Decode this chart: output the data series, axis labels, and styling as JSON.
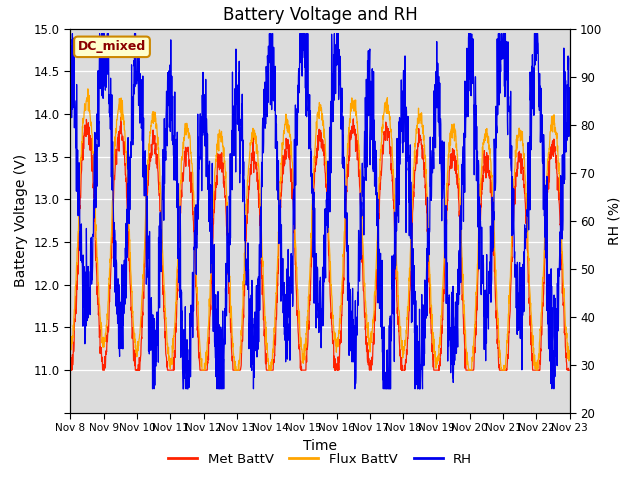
{
  "title": "Battery Voltage and RH",
  "xlabel": "Time",
  "ylabel_left": "Battery Voltage (V)",
  "ylabel_right": "RH (%)",
  "annotation_text": "DC_mixed",
  "annotation_color": "#8B0000",
  "annotation_bg": "#FFFFCC",
  "annotation_border": "#CC8800",
  "ylim_left": [
    10.5,
    15.0
  ],
  "ylim_right": [
    20,
    100
  ],
  "yticks_left": [
    10.5,
    11.0,
    11.5,
    12.0,
    12.5,
    13.0,
    13.5,
    14.0,
    14.5,
    15.0
  ],
  "yticks_right": [
    20,
    30,
    40,
    50,
    60,
    70,
    80,
    90,
    100
  ],
  "xtick_labels": [
    "Nov 8",
    "Nov 9",
    "Nov 10",
    "Nov 11",
    "Nov 12",
    "Nov 13",
    "Nov 14",
    "Nov 15",
    "Nov 16",
    "Nov 17",
    "Nov 18",
    "Nov 19",
    "Nov 20",
    "Nov 21",
    "Nov 22",
    "Nov 23"
  ],
  "legend_labels": [
    "Met BattV",
    "Flux BattV",
    "RH"
  ],
  "legend_colors": [
    "#FF2200",
    "#FFA500",
    "#0000EE"
  ],
  "line_colors": {
    "met": "#FF2200",
    "flux": "#FFA500",
    "rh": "#0000EE"
  },
  "bg_color": "#DCDCDC",
  "grid_color": "#FFFFFF",
  "title_fontsize": 12,
  "label_fontsize": 10,
  "tick_fontsize": 8.5
}
